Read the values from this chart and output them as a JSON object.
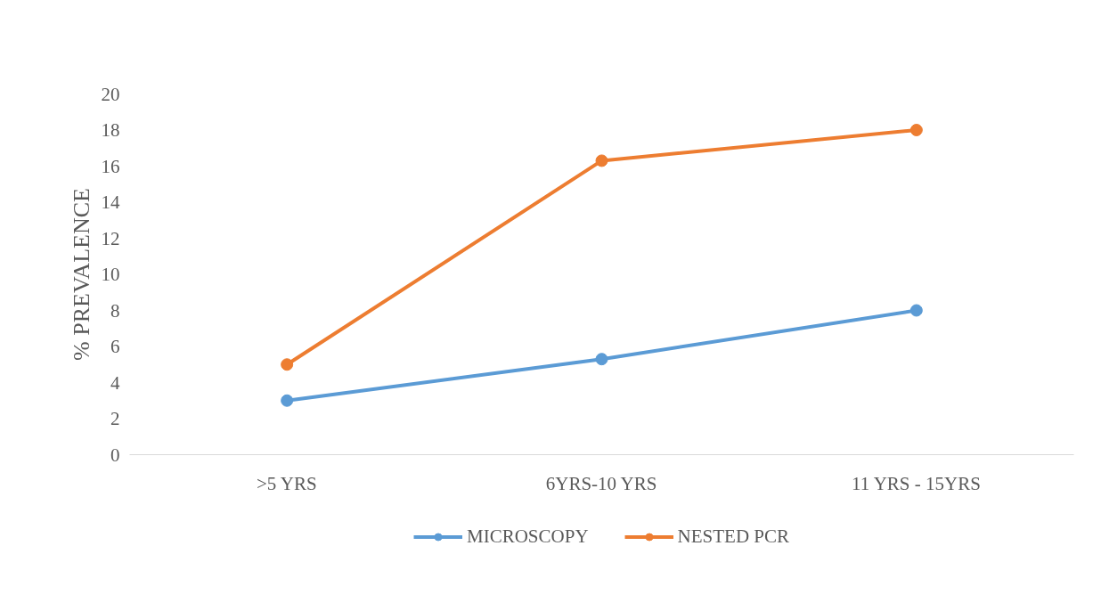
{
  "chart_data": {
    "type": "line",
    "ylabel": "% PREVALENCE",
    "categories": [
      ">5 YRS",
      "6YRS-10 YRS",
      "11 YRS - 15YRS"
    ],
    "series": [
      {
        "name": "MICROSCOPY",
        "color": "#5b9bd5",
        "values": [
          3,
          5.3,
          8
        ]
      },
      {
        "name": "NESTED PCR",
        "color": "#ed7d31",
        "values": [
          5,
          16.3,
          18
        ]
      }
    ],
    "ylim": [
      0,
      20
    ],
    "yticks": [
      0,
      2,
      4,
      6,
      8,
      10,
      12,
      14,
      16,
      18,
      20
    ],
    "grid": false,
    "legend": "bottom",
    "marker": "circle",
    "line_style": "solid"
  }
}
